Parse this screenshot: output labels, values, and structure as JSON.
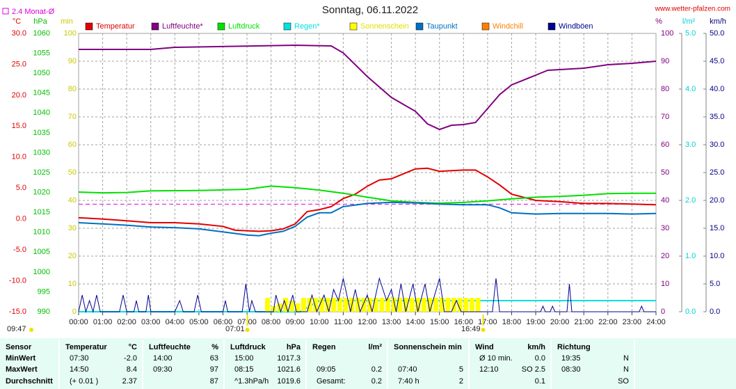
{
  "chart_data": {
    "type": "line",
    "title": "Sonntag, 06.11.2022",
    "source": "www.wetter-pfalzen.com",
    "xlim": [
      0,
      24
    ],
    "xticks": [
      {
        "value": 0,
        "label": "00:00"
      },
      {
        "value": 1,
        "label": "01:00"
      },
      {
        "value": 2,
        "label": "02:00"
      },
      {
        "value": 3,
        "label": "03:00"
      },
      {
        "value": 4,
        "label": "04:00"
      },
      {
        "value": 5,
        "label": "05:00"
      },
      {
        "value": 6,
        "label": "06:00"
      },
      {
        "value": 7,
        "label": "07:00"
      },
      {
        "value": 8,
        "label": "08:00"
      },
      {
        "value": 9,
        "label": "09:00"
      },
      {
        "value": 10,
        "label": "10:00"
      },
      {
        "value": 11,
        "label": "11:00"
      },
      {
        "value": 12,
        "label": "12:00"
      },
      {
        "value": 13,
        "label": "13:00"
      },
      {
        "value": 14,
        "label": "14:00"
      },
      {
        "value": 15,
        "label": "15:00"
      },
      {
        "value": 16,
        "label": "16:00"
      },
      {
        "value": 17,
        "label": "17:00"
      },
      {
        "value": 18,
        "label": "18:00"
      },
      {
        "value": 19,
        "label": "19:00"
      },
      {
        "value": 20,
        "label": "20:00"
      },
      {
        "value": 21,
        "label": "21:00"
      },
      {
        "value": 22,
        "label": "22:00"
      },
      {
        "value": 23,
        "label": "23:00"
      },
      {
        "value": 24,
        "label": "24:00"
      }
    ],
    "grid": true,
    "axes": {
      "temp": {
        "label": "°C",
        "color": "#e00000",
        "side": "left",
        "lim": [
          -15,
          30
        ],
        "ticks": [
          {
            "value": 30,
            "label": "30.0"
          },
          {
            "value": 25,
            "label": "25.0"
          },
          {
            "value": 20,
            "label": "20.0"
          },
          {
            "value": 15,
            "label": "15.0"
          },
          {
            "value": 10,
            "label": "10.0"
          },
          {
            "value": 5,
            "label": "5.0"
          },
          {
            "value": 0,
            "label": "0.0"
          },
          {
            "value": -5,
            "label": "-5.0"
          },
          {
            "value": -10,
            "label": "-10.0"
          },
          {
            "value": -15,
            "label": "-15.0"
          }
        ]
      },
      "hpa": {
        "label": "hPa",
        "color": "#00c000",
        "side": "left",
        "lim": [
          990,
          1060
        ],
        "ticks": [
          1060,
          1055,
          1050,
          1045,
          1040,
          1035,
          1030,
          1025,
          1020,
          1015,
          1010,
          1005,
          1000,
          995,
          990
        ]
      },
      "min": {
        "label": "min",
        "color": "#c8c800",
        "side": "left",
        "lim": [
          0,
          100
        ],
        "ticks": [
          100,
          90,
          80,
          70,
          60,
          50,
          40,
          30,
          20,
          10,
          0
        ]
      },
      "pct": {
        "label": "%",
        "color": "#800080",
        "side": "right",
        "lim": [
          0,
          100
        ],
        "ticks": [
          100,
          90,
          80,
          70,
          60,
          50,
          40,
          30,
          20,
          10,
          0
        ]
      },
      "rain": {
        "label": "l/m²",
        "color": "#00d0d0",
        "side": "right",
        "lim": [
          0,
          5
        ],
        "ticks": [
          {
            "value": 5,
            "label": "5.0"
          },
          {
            "value": 4,
            "label": "4.0"
          },
          {
            "value": 3,
            "label": "3.0"
          },
          {
            "value": 2,
            "label": "2.0"
          },
          {
            "value": 1,
            "label": "1.0"
          },
          {
            "value": 0,
            "label": "0.0"
          }
        ]
      },
      "kmh": {
        "label": "km/h",
        "color": "#000080",
        "side": "right",
        "lim": [
          0,
          50
        ],
        "ticks": [
          {
            "value": 50,
            "label": "50.0"
          },
          {
            "value": 45,
            "label": "45.0"
          },
          {
            "value": 40,
            "label": "40.0"
          },
          {
            "value": 35,
            "label": "35.0"
          },
          {
            "value": 30,
            "label": "30.0"
          },
          {
            "value": 25,
            "label": "25.0"
          },
          {
            "value": 20,
            "label": "20.0"
          },
          {
            "value": 15,
            "label": "15.0"
          },
          {
            "value": 10,
            "label": "10.0"
          },
          {
            "value": 5,
            "label": "5.0"
          },
          {
            "value": 0,
            "label": "0.0"
          }
        ]
      }
    },
    "monthly_avg": {
      "label": "2.4 Monat-Ø",
      "value": 2.4,
      "axis": "temp",
      "color": "#e000e0"
    },
    "series": [
      {
        "name": "Temperatur",
        "color": "#e00000",
        "axis": "temp",
        "style": "line",
        "x": [
          0,
          1,
          2,
          3,
          4,
          5,
          6,
          6.5,
          7,
          7.5,
          8,
          8.5,
          9,
          9.5,
          10,
          10.5,
          11,
          11.5,
          12,
          12.5,
          13,
          13.5,
          14,
          14.5,
          15,
          15.5,
          16,
          16.5,
          17,
          17.5,
          18,
          19,
          20,
          21,
          22,
          23,
          24
        ],
        "values": [
          0.2,
          0.0,
          -0.3,
          -0.6,
          -0.6,
          -0.8,
          -1.2,
          -1.8,
          -1.9,
          -2.0,
          -1.9,
          -1.6,
          -0.8,
          1.2,
          1.5,
          2.0,
          3.3,
          4.0,
          5.3,
          6.3,
          6.5,
          7.3,
          8.1,
          8.2,
          7.7,
          7.8,
          7.9,
          7.9,
          6.8,
          5.5,
          4.0,
          3.0,
          2.8,
          2.5,
          2.5,
          2.4,
          2.3
        ]
      },
      {
        "name": "Luftfeuchte*",
        "color": "#800080",
        "axis": "pct",
        "style": "line",
        "x": [
          0,
          3,
          4,
          9,
          10.5,
          11,
          12,
          13,
          14,
          14.5,
          15,
          15.5,
          16,
          16.5,
          17,
          17.5,
          18,
          19,
          19.5,
          20,
          21,
          22,
          23,
          24
        ],
        "values": [
          94.25,
          94.25,
          95,
          95.75,
          95.5,
          93,
          84.5,
          77,
          72,
          67.5,
          65.5,
          67,
          67.25,
          68,
          73,
          78,
          81.5,
          85,
          86.75,
          87,
          87.5,
          88.75,
          89.25,
          90
        ]
      },
      {
        "name": "Luftdruck",
        "color": "#00e000",
        "axis": "hpa",
        "style": "line",
        "x": [
          0,
          1,
          2,
          3,
          5,
          7,
          8,
          9,
          10,
          11,
          12,
          13,
          14,
          15,
          16,
          17,
          18,
          19,
          20,
          21,
          22,
          23,
          24
        ],
        "values": [
          1020.1,
          1019.9,
          1020.0,
          1020.4,
          1020.5,
          1020.8,
          1021.6,
          1021.2,
          1020.6,
          1019.8,
          1018.8,
          1017.9,
          1017.5,
          1017.3,
          1017.5,
          1017.9,
          1018.4,
          1018.8,
          1019.0,
          1019.3,
          1019.7,
          1019.8,
          1019.8
        ]
      },
      {
        "name": "Regen*",
        "color": "#00e0e0",
        "axis": "rain",
        "style": "line",
        "x": [
          0,
          9.2,
          9.6,
          10,
          24
        ],
        "values": [
          0,
          0,
          0.1,
          0.2,
          0.2
        ]
      },
      {
        "name": "Sonnenschein",
        "color": "#ffff00",
        "axis": "min",
        "style": "bar",
        "x": [
          7.75,
          8,
          8.25,
          8.5,
          8.75,
          9,
          9.25,
          9.5,
          9.75,
          10,
          10.25,
          10.5,
          10.75,
          11,
          11.25,
          11.5,
          11.75,
          12,
          12.25,
          12.5,
          12.75,
          13,
          13.25,
          13.5,
          13.75,
          14,
          14.25,
          14.5,
          14.75,
          15,
          15.25,
          15.5,
          15.75,
          16,
          16.25,
          16.5
        ],
        "values": [
          5,
          2,
          3,
          5,
          4,
          3,
          5,
          5,
          5,
          5,
          5,
          5,
          5,
          5,
          5,
          5,
          5,
          5,
          5,
          5,
          5,
          5,
          5,
          5,
          5,
          5,
          5,
          5,
          5,
          5,
          5,
          5,
          5,
          5,
          5,
          5
        ]
      },
      {
        "name": "Taupunkt",
        "color": "#0070c0",
        "axis": "temp",
        "style": "line",
        "x": [
          0,
          1,
          2,
          3,
          4,
          5,
          6,
          7,
          7.5,
          8,
          8.5,
          9,
          9.5,
          10,
          10.5,
          11,
          12,
          13,
          14,
          15,
          16,
          17,
          17.5,
          18,
          19,
          20,
          21,
          22,
          23,
          24
        ],
        "values": [
          -0.6,
          -0.8,
          -1.0,
          -1.3,
          -1.4,
          -1.6,
          -2.1,
          -2.6,
          -2.7,
          -2.3,
          -2.0,
          -1.2,
          0.3,
          1.0,
          1.0,
          2.0,
          2.5,
          2.7,
          2.6,
          2.4,
          2.3,
          2.3,
          1.8,
          1.0,
          0.8,
          0.9,
          0.9,
          0.9,
          0.8,
          0.9
        ]
      },
      {
        "name": "Windchill",
        "color": "#ff8000",
        "axis": "temp",
        "style": "line",
        "x": [],
        "values": []
      },
      {
        "name": "Windböen",
        "color": "#000090",
        "axis": "kmh",
        "style": "line",
        "x": [
          0,
          0.15,
          0.3,
          0.45,
          0.6,
          0.75,
          0.9,
          1.7,
          1.85,
          2.0,
          2.3,
          2.4,
          2.5,
          2.8,
          2.9,
          3.0,
          4.0,
          4.2,
          4.35,
          4.8,
          4.95,
          5.1,
          6.0,
          6.1,
          6.2,
          6.8,
          6.95,
          7.1,
          7.2,
          7.35,
          8.1,
          8.2,
          8.4,
          8.55,
          8.7,
          8.9,
          9.05,
          9.5,
          9.7,
          9.9,
          10.2,
          10.4,
          10.6,
          10.8,
          11.0,
          11.3,
          11.5,
          11.7,
          12.0,
          12.2,
          12.5,
          12.8,
          13.0,
          13.2,
          13.4,
          13.6,
          13.9,
          14.1,
          14.4,
          14.6,
          14.8,
          15.0,
          15.2,
          15.5,
          15.7,
          15.9,
          17.2,
          17.35,
          17.5,
          19.2,
          19.3,
          19.4,
          19.6,
          19.7,
          19.8,
          20.3,
          20.4,
          20.5,
          23.3,
          23.4,
          23.5,
          24
        ],
        "values": [
          0,
          3,
          0,
          2,
          0,
          3,
          0,
          0,
          3,
          0,
          0,
          2,
          0,
          0,
          3,
          0,
          0,
          2,
          0,
          0,
          3,
          0,
          0,
          2,
          0,
          0,
          5,
          0,
          2,
          0,
          0,
          3,
          0,
          2,
          0,
          3,
          0,
          0,
          3,
          0,
          3,
          0,
          4,
          2,
          6,
          0,
          4,
          0,
          3,
          0,
          6,
          2,
          4,
          0,
          5,
          0,
          5,
          0,
          5,
          0,
          3,
          6,
          0,
          0,
          2,
          0,
          0,
          6,
          0,
          0,
          1,
          0,
          0,
          1,
          0,
          0,
          5,
          0,
          0,
          1,
          0,
          0
        ]
      }
    ],
    "markers": [
      {
        "label": "09:47",
        "x": null
      },
      {
        "label": "07:01",
        "x": 7.0167
      },
      {
        "label": "16:49",
        "x": 16.8167
      }
    ]
  },
  "table": {
    "sensor_header": "Sensor",
    "groups": [
      {
        "label": "Temperatur",
        "unit": "°C"
      },
      {
        "label": "Luftfeuchte",
        "unit": "%"
      },
      {
        "label": "Luftdruck",
        "unit": "hPa"
      },
      {
        "label": "Regen",
        "unit": "l/m²"
      },
      {
        "label": "Sonnenschein min",
        "unit": null
      },
      {
        "label": "Wind",
        "unit": "km/h"
      },
      {
        "label": "Richtung",
        "unit": null
      }
    ],
    "rows": [
      {
        "name": "MinWert",
        "cells": [
          [
            "07:30",
            "-2.0"
          ],
          [
            "14:00",
            "63"
          ],
          [
            "15:00",
            "1017.3"
          ],
          [
            null,
            null
          ],
          [
            null,
            null
          ],
          [
            "Ø 10 min.",
            "0.0"
          ],
          [
            "19:35",
            "N"
          ]
        ]
      },
      {
        "name": "MaxWert",
        "cells": [
          [
            "14:50",
            "8.4"
          ],
          [
            "09:30",
            "97"
          ],
          [
            "08:15",
            "1021.6"
          ],
          [
            "09:05",
            "0.2"
          ],
          [
            "07:40",
            "5"
          ],
          [
            "12:10",
            "SO 2.5"
          ],
          [
            "08:30",
            "N"
          ]
        ]
      },
      {
        "name": "Durchschnitt",
        "cells": [
          [
            "(+ 0.01 )",
            "2.37"
          ],
          [
            null,
            "87"
          ],
          [
            "^1.3hPa/h",
            "1019.6"
          ],
          [
            "Gesamt:",
            "0.2"
          ],
          [
            "7:40 h",
            "2"
          ],
          [
            null,
            "0.1"
          ],
          [
            null,
            "SO"
          ]
        ]
      }
    ]
  }
}
